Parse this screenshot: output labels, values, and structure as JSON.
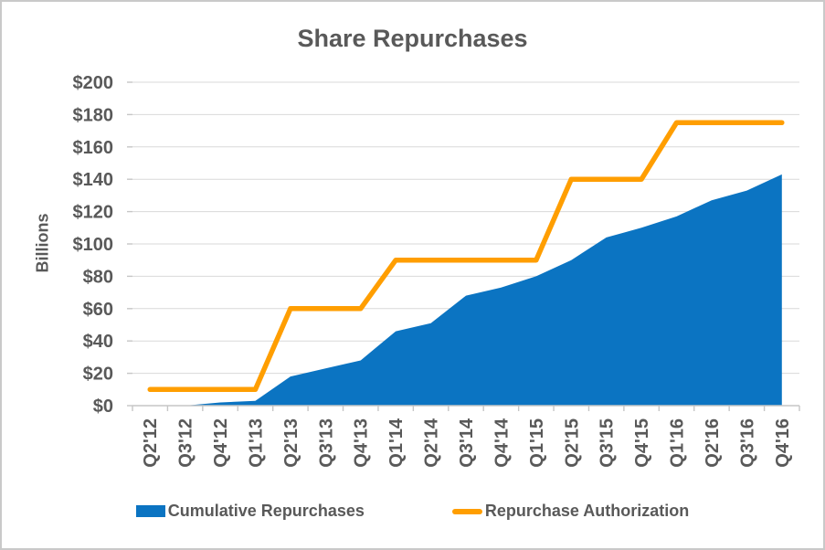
{
  "chart_data": {
    "type": "area",
    "title": "Share Repurchases",
    "ylabel": "Billions",
    "xlabel": "",
    "categories": [
      "Q2'12",
      "Q3'12",
      "Q4'12",
      "Q1'13",
      "Q2'13",
      "Q3'13",
      "Q4'13",
      "Q1'14",
      "Q2'14",
      "Q3'14",
      "Q4'14",
      "Q1'15",
      "Q2'15",
      "Q3'15",
      "Q4'15",
      "Q1'16",
      "Q2'16",
      "Q3'16",
      "Q4'16"
    ],
    "series": [
      {
        "name": "Cumulative Repurchases",
        "type": "area",
        "color": "#0B74C2",
        "values": [
          0,
          0,
          2,
          3,
          18,
          23,
          28,
          46,
          51,
          68,
          73,
          80,
          90,
          104,
          110,
          117,
          127,
          133,
          143
        ]
      },
      {
        "name": "Repurchase Authorization",
        "type": "line",
        "color": "#FF9E00",
        "values": [
          10,
          10,
          10,
          10,
          60,
          60,
          60,
          90,
          90,
          90,
          90,
          90,
          140,
          140,
          140,
          175,
          175,
          175,
          175
        ]
      }
    ],
    "ylim": [
      0,
      200
    ],
    "ytick_step": 20,
    "ytick_labels": [
      "$0",
      "$20",
      "$40",
      "$60",
      "$80",
      "$100",
      "$120",
      "$140",
      "$160",
      "$180",
      "$200"
    ],
    "grid": true,
    "legend_position": "bottom"
  },
  "colors": {
    "background": "#FFFFFF",
    "border": "#C9C9C9",
    "grid": "#D9D9D9",
    "axis": "#C6C6C6",
    "text": "#595959",
    "area_fill": "#0B74C2",
    "line": "#FF9E00"
  }
}
